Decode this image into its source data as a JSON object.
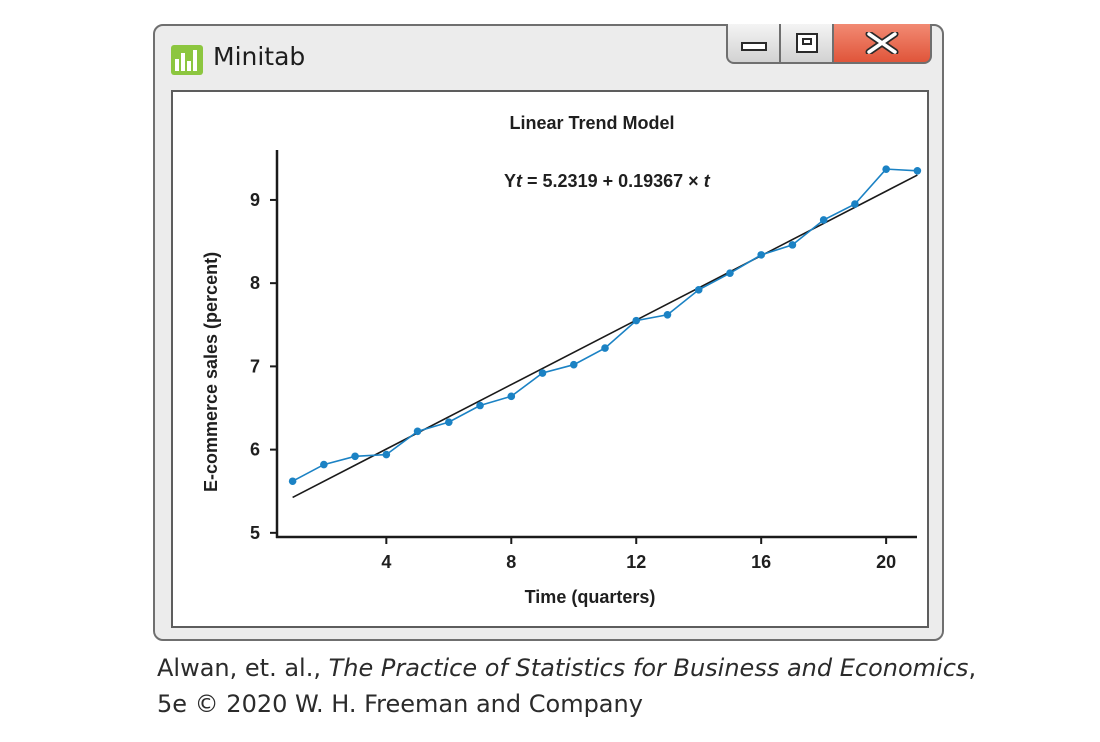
{
  "window": {
    "title": "Minitab",
    "controls": {
      "minimize": "minimize",
      "restore": "restore",
      "close": "close"
    },
    "close_color": "#e0553a",
    "logo_color": "#8cc63f"
  },
  "chart_data": {
    "type": "line",
    "title": "Linear Trend Model",
    "equation": {
      "prefix": "Y",
      "italic_t": "t",
      "rest": " = 5.2319 + 0.19367 × ",
      "italic_t2": "t"
    },
    "xlabel": "Time (quarters)",
    "ylabel": "E-commerce sales (percent)",
    "xlim": [
      0.5,
      21.5
    ],
    "ylim": [
      4.95,
      9.6
    ],
    "xticks": [
      4,
      8,
      12,
      16,
      20
    ],
    "yticks": [
      5,
      6,
      7,
      8,
      9
    ],
    "grid": false,
    "series": [
      {
        "name": "",
        "color": "#1b82c4",
        "x": [
          1,
          2,
          3,
          4,
          5,
          6,
          7,
          8,
          9,
          10,
          11,
          12,
          13,
          14,
          15,
          16,
          17,
          18,
          19,
          20,
          21
        ],
        "values": [
          5.62,
          5.82,
          5.92,
          5.94,
          6.22,
          6.33,
          6.53,
          6.64,
          6.92,
          7.02,
          7.22,
          7.55,
          7.62,
          7.92,
          8.12,
          8.34,
          8.46,
          8.76,
          8.95,
          9.37,
          9.35
        ]
      }
    ],
    "trend": {
      "intercept": 5.2319,
      "slope": 0.19367,
      "x_range": [
        1,
        21
      ],
      "color": "#1a1a1a"
    }
  },
  "caption": {
    "line1_prefix": "Alwan, et. al., ",
    "line1_italic": "The Practice of Statistics for Business and Economics",
    "line1_suffix": ",",
    "line2": "5e © 2020 W. H. Freeman and Company"
  }
}
